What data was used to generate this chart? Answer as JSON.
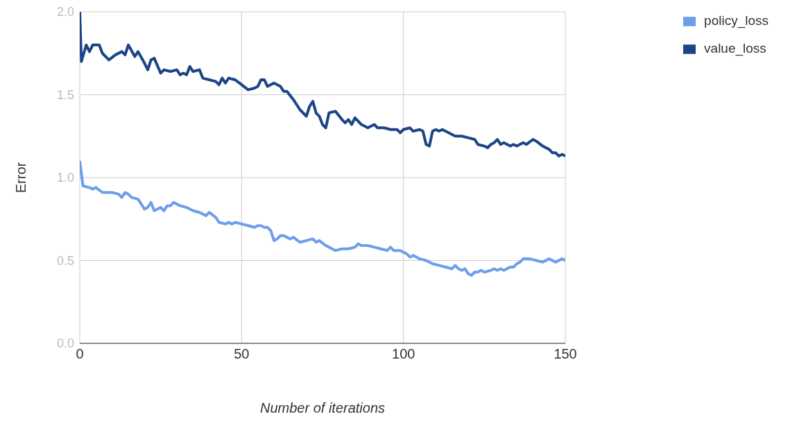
{
  "chart_data": {
    "type": "line",
    "xlabel": "Number of iterations",
    "ylabel": "Error",
    "xlim": [
      0,
      150
    ],
    "xticks": [
      0,
      50,
      100,
      150
    ],
    "ylim": [
      0,
      2
    ],
    "yticks": [
      {
        "value": 0,
        "label": "0.0"
      },
      {
        "value": 0.5,
        "label": "0.5"
      },
      {
        "value": 1,
        "label": "1.0"
      },
      {
        "value": 1.5,
        "label": "1.5"
      },
      {
        "value": 2,
        "label": "2.0"
      }
    ],
    "grid": true,
    "legend": "top right",
    "marker": "none",
    "line_style": "solid",
    "series": [
      {
        "name": "value_loss",
        "color": "#1c4587",
        "x": [
          0,
          0.5,
          2,
          3,
          4,
          6,
          7,
          9,
          11,
          13,
          14,
          15,
          17,
          18,
          20,
          21,
          22,
          23,
          25,
          26,
          28,
          30,
          31,
          32,
          33,
          34,
          35,
          37,
          38,
          40,
          42,
          43,
          44,
          45,
          46,
          48,
          50,
          52,
          54,
          55,
          56,
          57,
          58,
          60,
          62,
          63,
          64,
          66,
          68,
          70,
          71,
          72,
          73,
          74,
          75,
          76,
          77,
          79,
          81,
          82,
          83,
          84,
          85,
          87,
          89,
          91,
          92,
          94,
          96,
          98,
          99,
          100,
          102,
          103,
          105,
          106,
          107,
          108,
          109,
          110,
          111,
          112,
          114,
          116,
          118,
          120,
          122,
          123,
          125,
          126,
          127,
          128,
          129,
          130,
          131,
          133,
          134,
          135,
          137,
          138,
          140,
          141,
          143,
          145,
          146,
          147,
          148,
          149,
          150
        ],
        "values": [
          2.0,
          1.7,
          1.8,
          1.76,
          1.8,
          1.8,
          1.75,
          1.71,
          1.74,
          1.76,
          1.74,
          1.8,
          1.73,
          1.76,
          1.69,
          1.65,
          1.71,
          1.72,
          1.63,
          1.65,
          1.64,
          1.65,
          1.62,
          1.63,
          1.62,
          1.67,
          1.64,
          1.65,
          1.6,
          1.59,
          1.58,
          1.56,
          1.6,
          1.57,
          1.6,
          1.59,
          1.56,
          1.53,
          1.54,
          1.55,
          1.59,
          1.59,
          1.55,
          1.57,
          1.55,
          1.52,
          1.52,
          1.47,
          1.41,
          1.37,
          1.43,
          1.46,
          1.39,
          1.37,
          1.32,
          1.3,
          1.39,
          1.4,
          1.35,
          1.33,
          1.35,
          1.32,
          1.36,
          1.32,
          1.3,
          1.32,
          1.3,
          1.3,
          1.29,
          1.29,
          1.27,
          1.29,
          1.3,
          1.28,
          1.29,
          1.28,
          1.2,
          1.19,
          1.28,
          1.29,
          1.28,
          1.29,
          1.27,
          1.25,
          1.25,
          1.24,
          1.23,
          1.2,
          1.19,
          1.18,
          1.2,
          1.21,
          1.23,
          1.2,
          1.21,
          1.19,
          1.2,
          1.19,
          1.21,
          1.2,
          1.23,
          1.22,
          1.19,
          1.17,
          1.15,
          1.15,
          1.13,
          1.14,
          1.13
        ]
      },
      {
        "name": "policy_loss",
        "color": "#6d9eeb",
        "x": [
          0,
          1,
          3,
          4,
          5,
          7,
          8,
          10,
          12,
          13,
          14,
          15,
          16,
          18,
          20,
          21,
          22,
          23,
          25,
          26,
          27,
          28,
          29,
          31,
          33,
          35,
          37,
          38,
          39,
          40,
          42,
          43,
          45,
          46,
          47,
          48,
          50,
          52,
          54,
          55,
          56,
          57,
          58,
          59,
          60,
          61,
          62,
          63,
          65,
          66,
          68,
          70,
          72,
          73,
          74,
          76,
          77,
          79,
          81,
          83,
          85,
          86,
          87,
          89,
          91,
          93,
          95,
          96,
          97,
          99,
          101,
          102,
          103,
          105,
          107,
          109,
          111,
          113,
          115,
          116,
          117,
          118,
          119,
          120,
          121,
          122,
          123,
          124,
          125,
          127,
          128,
          129,
          130,
          131,
          133,
          134,
          135,
          136,
          137,
          139,
          141,
          143,
          145,
          147,
          149,
          150
        ],
        "values": [
          1.1,
          0.95,
          0.94,
          0.93,
          0.94,
          0.91,
          0.91,
          0.91,
          0.9,
          0.88,
          0.91,
          0.9,
          0.88,
          0.87,
          0.81,
          0.82,
          0.85,
          0.8,
          0.82,
          0.8,
          0.83,
          0.83,
          0.85,
          0.83,
          0.82,
          0.8,
          0.79,
          0.78,
          0.77,
          0.79,
          0.76,
          0.73,
          0.72,
          0.73,
          0.72,
          0.73,
          0.72,
          0.71,
          0.7,
          0.71,
          0.71,
          0.7,
          0.7,
          0.68,
          0.62,
          0.63,
          0.65,
          0.65,
          0.63,
          0.64,
          0.61,
          0.62,
          0.63,
          0.61,
          0.62,
          0.59,
          0.58,
          0.56,
          0.57,
          0.57,
          0.58,
          0.6,
          0.59,
          0.59,
          0.58,
          0.57,
          0.56,
          0.58,
          0.56,
          0.56,
          0.54,
          0.52,
          0.53,
          0.51,
          0.5,
          0.48,
          0.47,
          0.46,
          0.45,
          0.47,
          0.45,
          0.44,
          0.45,
          0.42,
          0.41,
          0.43,
          0.43,
          0.44,
          0.43,
          0.44,
          0.45,
          0.44,
          0.45,
          0.44,
          0.46,
          0.46,
          0.48,
          0.49,
          0.51,
          0.51,
          0.5,
          0.49,
          0.51,
          0.49,
          0.51,
          0.5
        ]
      }
    ]
  }
}
